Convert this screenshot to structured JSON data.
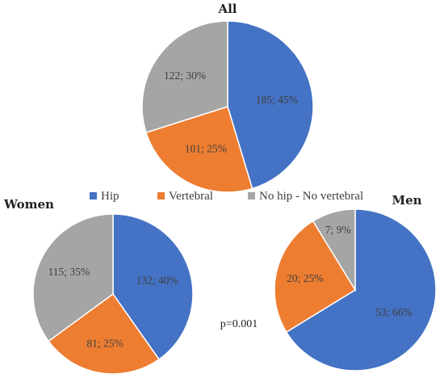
{
  "colors": {
    "Hip": "#4472c4",
    "Vertebral": "#ed7d31",
    "No hip - No vertebral": "#a5a5a5"
  },
  "legend": [
    "Hip",
    "Vertebral",
    "No hip - No vertebral"
  ],
  "p_value_text": "p=0.001",
  "chart_data": [
    {
      "type": "pie",
      "title": "All",
      "categories": [
        "Hip",
        "Vertebral",
        "No hip - No vertebral"
      ],
      "values": [
        185,
        101,
        122
      ],
      "percents": [
        45,
        25,
        30
      ],
      "labels": [
        "185; 45%",
        "101; 25%",
        "122; 30%"
      ]
    },
    {
      "type": "pie",
      "title": "Women",
      "categories": [
        "Hip",
        "Vertebral",
        "No hip - No vertebral"
      ],
      "values": [
        132,
        81,
        115
      ],
      "percents": [
        40,
        25,
        35
      ],
      "labels": [
        "132; 40%",
        "81; 25%",
        "115; 35%"
      ]
    },
    {
      "type": "pie",
      "title": "Men",
      "categories": [
        "Hip",
        "Vertebral",
        "No hip - No vertebral"
      ],
      "values": [
        53,
        20,
        7
      ],
      "percents": [
        66,
        25,
        9
      ],
      "labels": [
        "53; 66%",
        "20; 25%",
        "7; 9%"
      ]
    }
  ]
}
